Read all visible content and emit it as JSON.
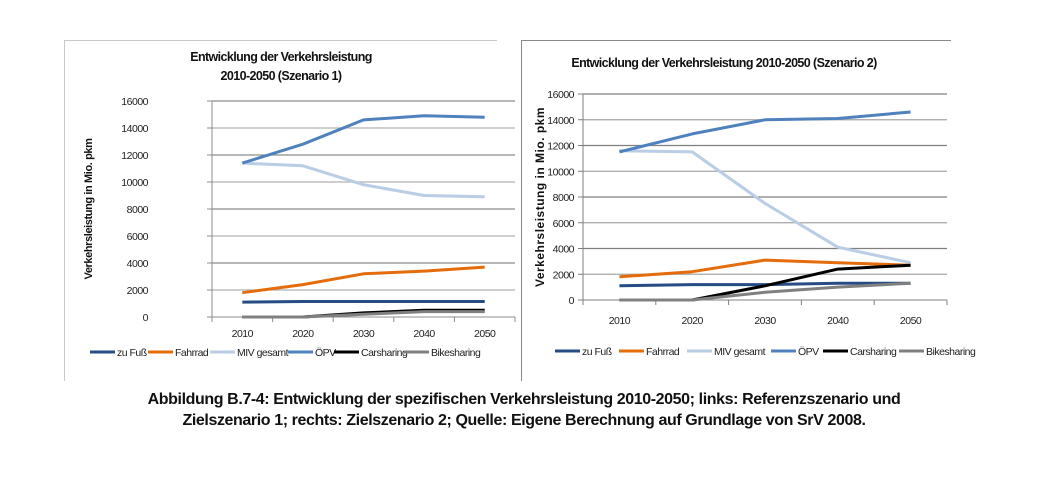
{
  "caption": {
    "line1": "Abbildung B.7-4: Entwicklung der spezifischen Verkehrsleistung 2010-2050; links: Referenzszenario und",
    "line2": "Zielszenario 1; rechts: Zielszenario 2; Quelle: Eigene Berechnung auf Grundlage von SrV 2008."
  },
  "chart_data": [
    {
      "type": "line",
      "title": "Entwicklung der Verkehrsleistung 2010-2050 (Szenario 1)",
      "title_lines": [
        "Entwicklung der Verkehrsleistung",
        "2010-2050 (Szenario 1)"
      ],
      "xlabel": "",
      "ylabel": "Verkehrsleistung in Mio. pkm",
      "categories": [
        "2010",
        "2020",
        "2030",
        "2040",
        "2050"
      ],
      "ylim": [
        0,
        16000
      ],
      "yticks": [
        "0",
        "2000",
        "4000",
        "6000",
        "8000",
        "10000",
        "12000",
        "14000",
        "16000"
      ],
      "grid": true,
      "legend": "bottom",
      "series": [
        {
          "name": "zu Fuß",
          "color": "#254d84",
          "values": [
            1100,
            1150,
            1150,
            1150,
            1150
          ]
        },
        {
          "name": "Fahrrad",
          "color": "#e46c0a",
          "values": [
            1800,
            2400,
            3200,
            3400,
            3700
          ]
        },
        {
          "name": "MIV gesamt",
          "color": "#b9cde5",
          "values": [
            11400,
            11200,
            9800,
            9000,
            8900
          ]
        },
        {
          "name": "ÖPV",
          "color": "#4f81bd",
          "values": [
            11400,
            12800,
            14600,
            14900,
            14800
          ]
        },
        {
          "name": "Carsharing",
          "color": "#000000",
          "values": [
            0,
            0,
            300,
            500,
            500
          ]
        },
        {
          "name": "Bikesharing",
          "color": "#808080",
          "values": [
            0,
            0,
            200,
            400,
            400
          ]
        }
      ]
    },
    {
      "type": "line",
      "title": "Entwicklung der Verkehrsleistung 2010-2050 (Szenario 2)",
      "title_lines": [
        "Entwicklung der Verkehrsleistung 2010-2050 (Szenario 2)"
      ],
      "xlabel": "",
      "ylabel": "Verkehrsleistung in Mio. pkm",
      "categories": [
        "2010",
        "2020",
        "2030",
        "2040",
        "2050"
      ],
      "ylim": [
        0,
        16000
      ],
      "yticks": [
        "0",
        "2000",
        "4000",
        "6000",
        "8000",
        "10000",
        "12000",
        "14000",
        "16000"
      ],
      "grid": true,
      "legend": "bottom",
      "series": [
        {
          "name": "zu Fuß",
          "color": "#254d84",
          "values": [
            1100,
            1200,
            1200,
            1300,
            1300
          ]
        },
        {
          "name": "Fahrrad",
          "color": "#e46c0a",
          "values": [
            1800,
            2200,
            3100,
            2900,
            2700
          ]
        },
        {
          "name": "MIV gesamt",
          "color": "#b9cde5",
          "values": [
            11600,
            11500,
            7500,
            4100,
            2900
          ]
        },
        {
          "name": "ÖPV",
          "color": "#4f81bd",
          "values": [
            11500,
            12900,
            14000,
            14100,
            14600
          ]
        },
        {
          "name": "Carsharing",
          "color": "#000000",
          "values": [
            0,
            0,
            1100,
            2400,
            2700
          ]
        },
        {
          "name": "Bikesharing",
          "color": "#808080",
          "values": [
            0,
            0,
            600,
            1000,
            1300
          ]
        }
      ]
    }
  ]
}
